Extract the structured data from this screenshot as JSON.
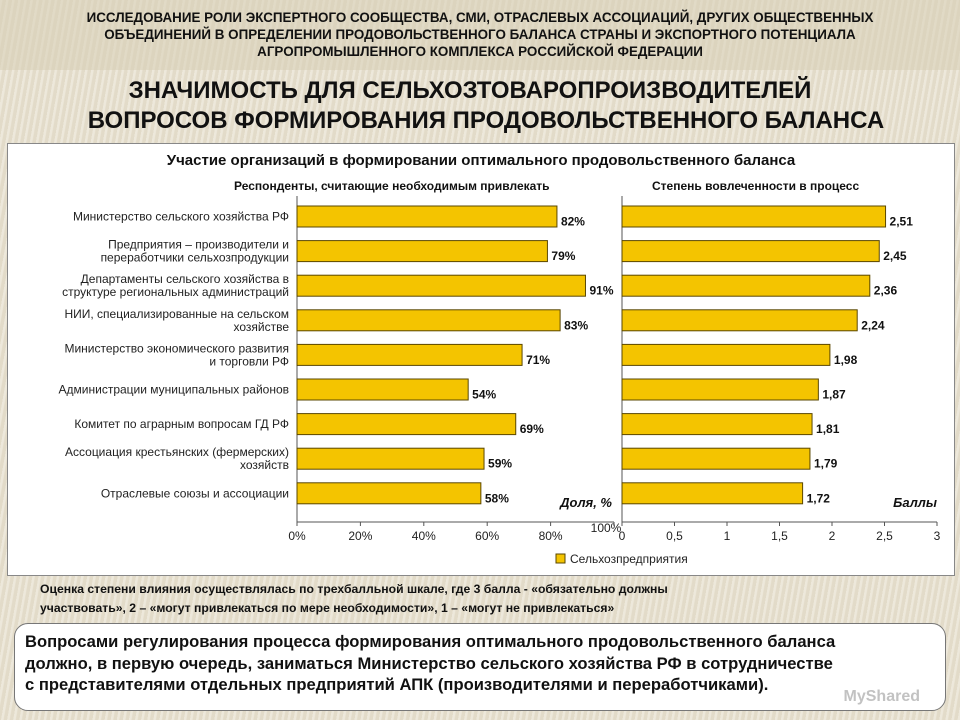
{
  "header": {
    "lines": [
      "ИССЛЕДОВАНИЕ РОЛИ ЭКСПЕРТНОГО СООБЩЕСТВА, СМИ, ОТРАСЛЕВЫХ АССОЦИАЦИЙ, ДРУГИХ ОБЩЕСТВЕННЫХ",
      "ОБЪЕДИНЕНИЙ В ОПРЕДЕЛЕНИИ ПРОДОВОЛЬСТВЕННОГО БАЛАНСА СТРАНЫ И ЭКСПОРТНОГО ПОТЕНЦИАЛА",
      "АГРОПРОМЫШЛЕННОГО КОМПЛЕКСА РОССИЙСКОЙ ФЕДЕРАЦИИ"
    ]
  },
  "slide_title": {
    "line1": "ЗНАЧИМОСТЬ ДЛЯ СЕЛЬХОЗТОВАРОПРОИЗВОДИТЕЛЕЙ",
    "line2": "ВОПРОСОВ ФОРМИРОВАНИЯ ПРОДОВОЛЬСТВЕННОГО БАЛАНСА"
  },
  "panel_title": "Участие организаций в формировании оптимального продовольственного баланса",
  "chart_data": [
    {
      "type": "bar",
      "orientation": "horizontal",
      "title": "Респонденты, считающие необходимым привлекать",
      "unit_label": "Доля, %",
      "categories": [
        [
          "Министерство сельского хозяйства РФ"
        ],
        [
          "Предприятия – производители и",
          "переработчики сельхозпродукции"
        ],
        [
          "Департаменты сельского хозяйства в",
          "структуре региональных администраций"
        ],
        [
          "НИИ, специализированные на сельском",
          "хозяйстве"
        ],
        [
          "Министерство экономического развития",
          "и торговли РФ"
        ],
        [
          "Администрации муниципальных районов"
        ],
        [
          "Комитет по аграрным вопросам ГД РФ"
        ],
        [
          "Ассоциация крестьянских (фермерских)",
          "хозяйств"
        ],
        [
          "Отраслевые союзы и ассоциации"
        ]
      ],
      "values": [
        82,
        79,
        91,
        83,
        71,
        54,
        69,
        59,
        58
      ],
      "value_labels": [
        "82%",
        "79%",
        "91%",
        "83%",
        "71%",
        "54%",
        "69%",
        "59%",
        "58%"
      ],
      "xlim": [
        0,
        100
      ],
      "xticks": [
        "0%",
        "20%",
        "40%",
        "60%",
        "80%",
        "100%"
      ],
      "grid": false
    },
    {
      "type": "bar",
      "orientation": "horizontal",
      "title": "Степень вовлеченности в процесс",
      "unit_label": "Баллы",
      "values": [
        2.51,
        2.45,
        2.36,
        2.24,
        1.98,
        1.87,
        1.81,
        1.79,
        1.72
      ],
      "value_labels": [
        "2,51",
        "2,45",
        "2,36",
        "2,24",
        "1,98",
        "1,87",
        "1,81",
        "1,79",
        "1,72"
      ],
      "xlim": [
        0,
        3
      ],
      "xticks": [
        "0",
        "0,5",
        "1",
        "1,5",
        "2",
        "2,5",
        "3"
      ],
      "grid": false
    }
  ],
  "legend": {
    "label": "Сельхозпредприятия",
    "placement": "bottom"
  },
  "colors": {
    "bar_fill": "#f4c400",
    "bar_stroke": "#5a4700"
  },
  "footnote": {
    "line1": "Оценка степени влияния осуществлялась по трехбалльной шкале, где 3 балла -  «обязательно должны",
    "line2": "участвовать», 2 – «могут привлекаться по мере необходимости», 1 – «могут не привлекаться»"
  },
  "conclusion": {
    "line1": "Вопросами регулирования процесса формирования оптимального продовольственного баланса",
    "line2": "должно, в первую очередь, заниматься Министерство сельского хозяйства РФ в сотрудничестве",
    "line3": "с представителями отдельных предприятий АПК (производителями и переработчиками)."
  },
  "watermark": "MyShared"
}
